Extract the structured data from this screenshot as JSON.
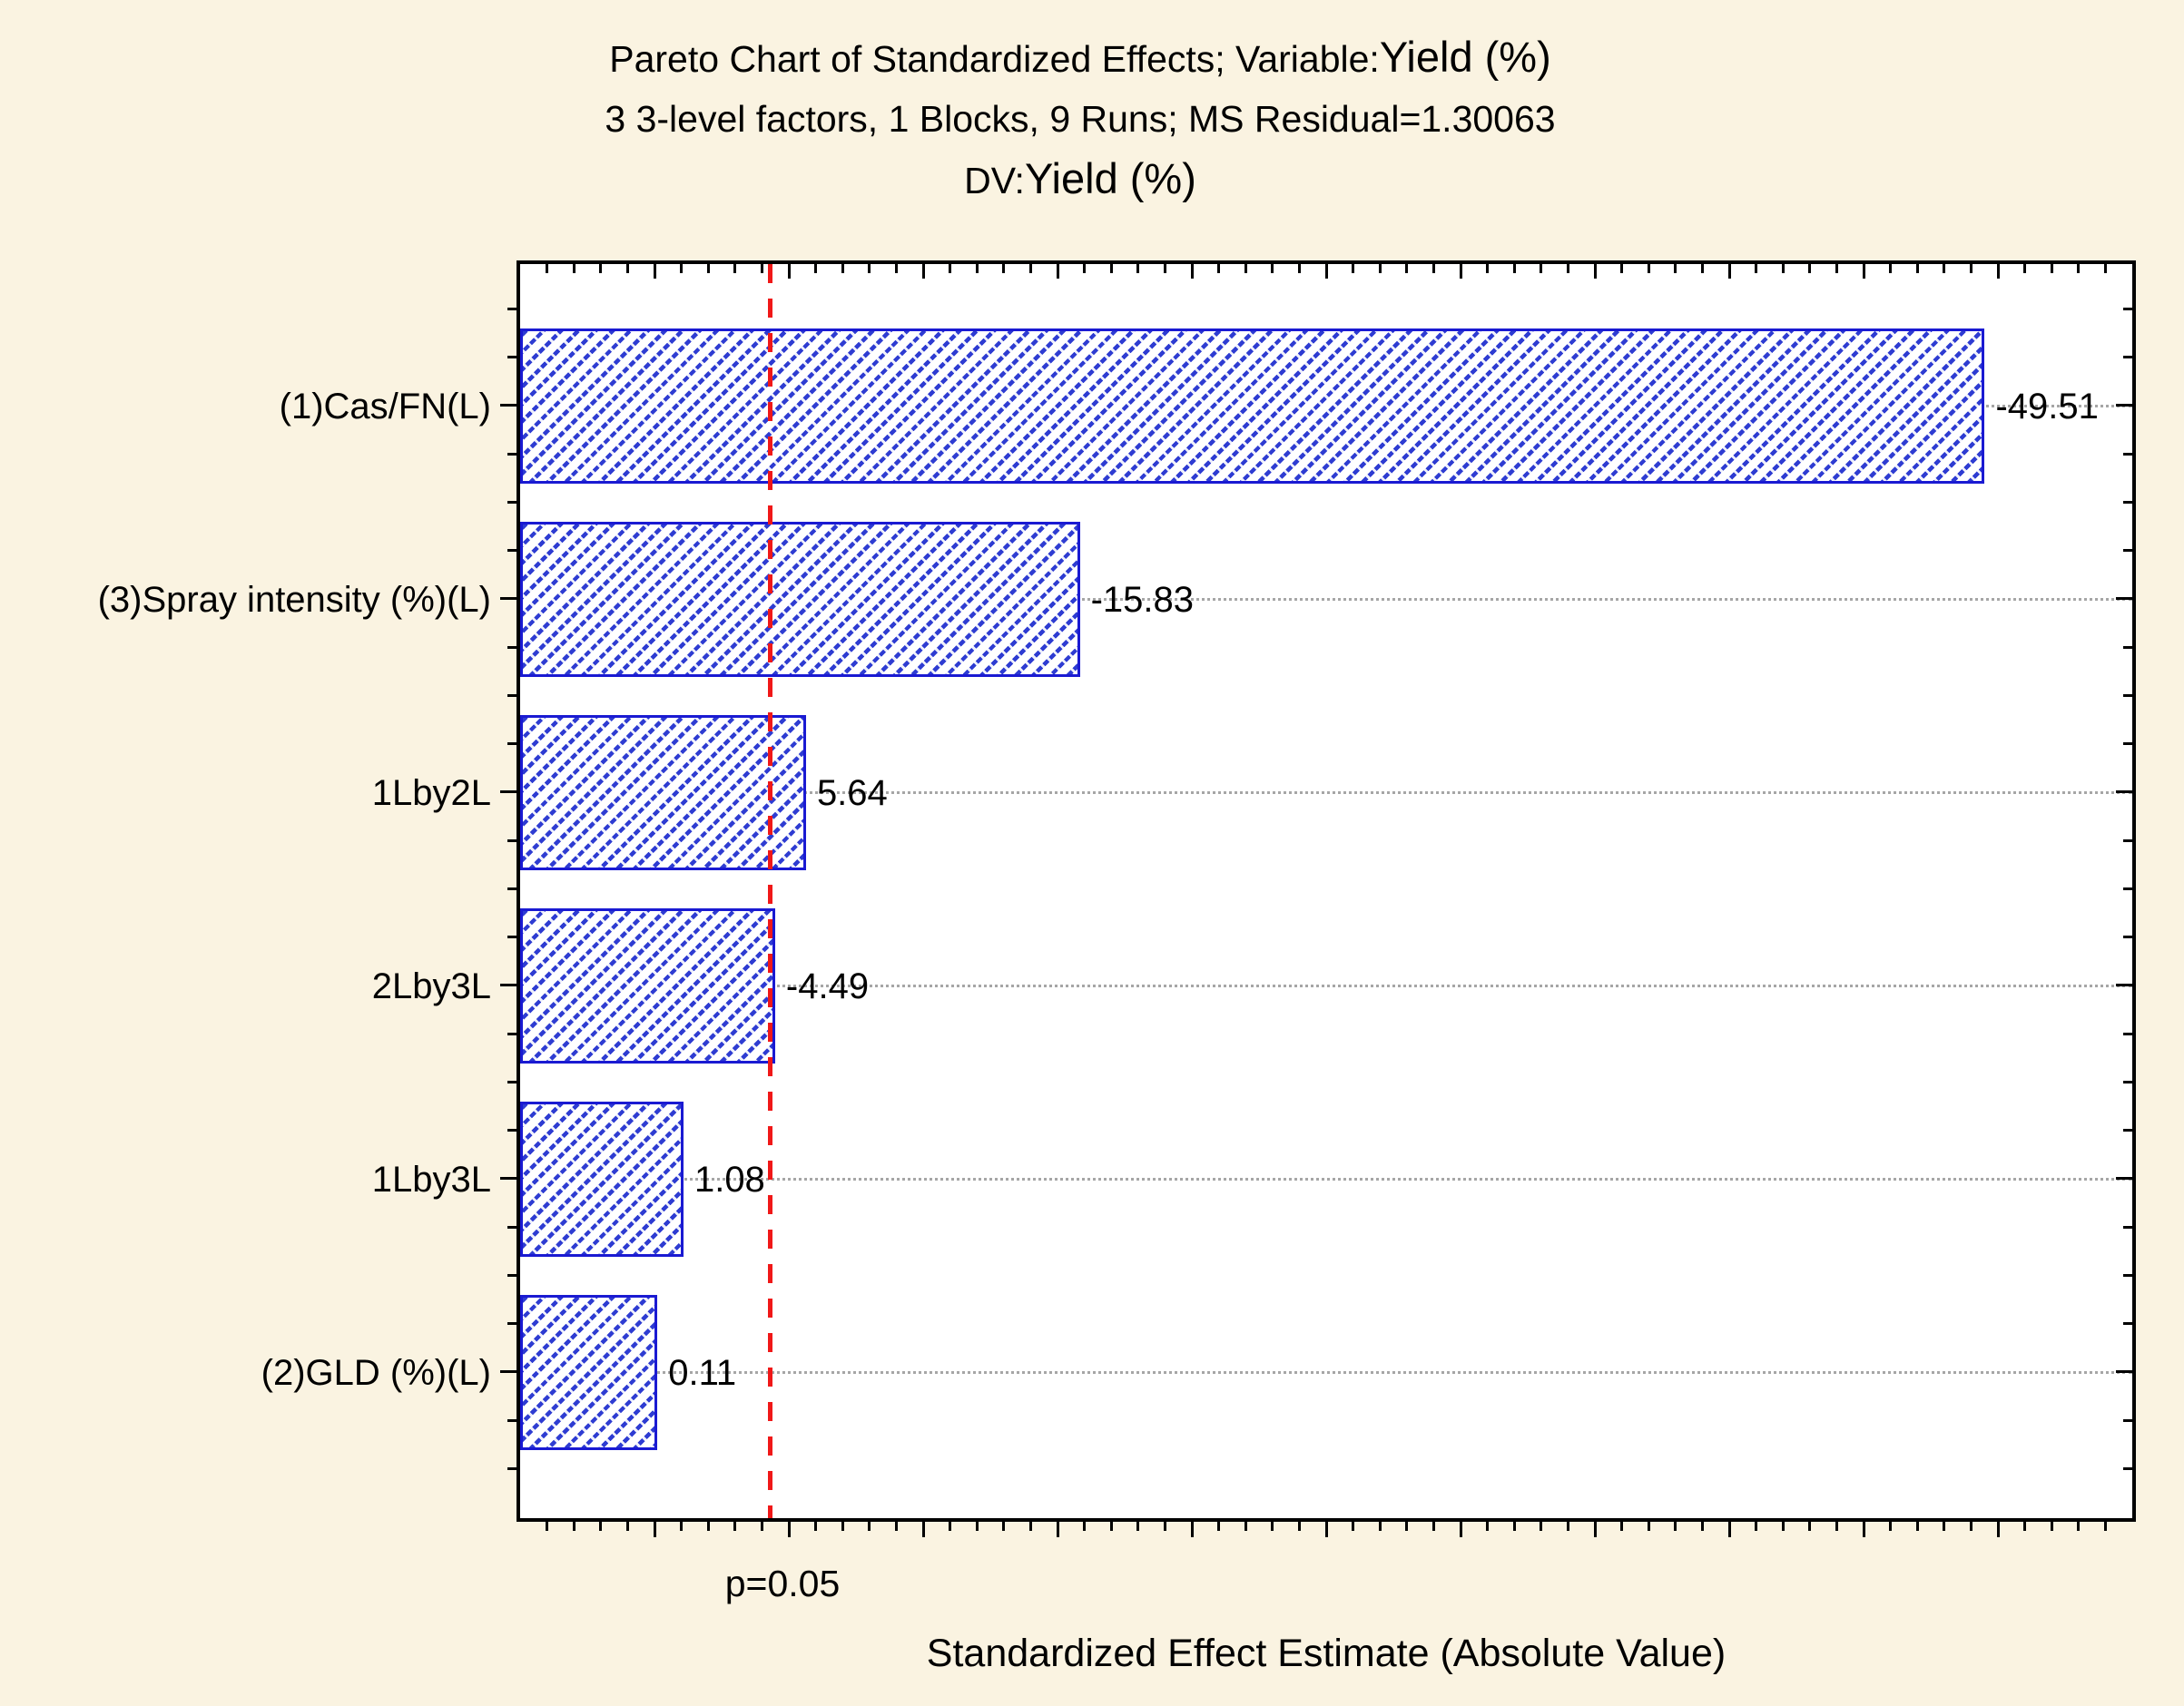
{
  "title": {
    "line1_prefix": "Pareto Chart of Standardized Effects; Variable:",
    "line1_emphasis": "Yield (%)",
    "line2": "3 3-level factors, 1 Blocks, 9 Runs; MS Residual=1.30063",
    "line3_prefix": "DV:",
    "line3_emphasis": "Yield (%)"
  },
  "chart_data": {
    "type": "bar",
    "orientation": "horizontal",
    "categories": [
      "(1)Cas/FN(L)",
      "(3)Spray intensity (%)(L)",
      "1Lby2L",
      "2Lby3L",
      "1Lby3L",
      "(2)GLD (%)(L)"
    ],
    "values": [
      -49.51,
      -15.83,
      5.64,
      -4.49,
      1.08,
      0.11
    ],
    "value_labels": [
      "-49.51",
      "-15.83",
      "5.64",
      "-4.49",
      "1.08",
      "0.11"
    ],
    "xlabel": "Standardized Effect Estimate (Absolute Value)",
    "ylabel": "",
    "xlim": [
      -5,
      55
    ],
    "x_minor_tick_step": 1,
    "x_major_tick_step": 5,
    "bars_measure": "absolute value of standardized effect",
    "reference_line": {
      "value": 4.3,
      "label": "p=0.05",
      "style": "dashed"
    },
    "grid": "dotted horizontal gridline at each bar center",
    "legend": "none"
  },
  "colors": {
    "background": "#faf3e1",
    "plot_background": "#ffffff",
    "axis": "#000000",
    "bar_border": "#1a1ad2",
    "bar_hatch": "#2e3cd2",
    "gridline": "#a6a6a6",
    "reference_line": "#f01818",
    "text": "#000000"
  },
  "icons": {}
}
